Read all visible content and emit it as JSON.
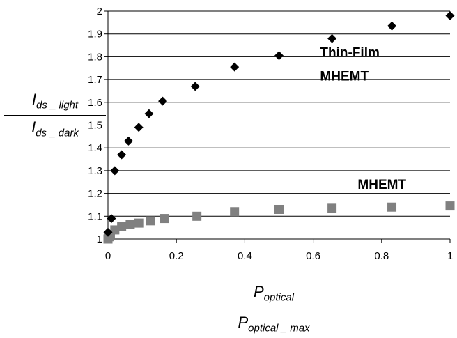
{
  "chart_data": {
    "type": "scatter",
    "title": "",
    "xlim": [
      0,
      1
    ],
    "ylim": [
      1,
      2
    ],
    "x_ticks": [
      0,
      0.2,
      0.4,
      0.6,
      0.8,
      1
    ],
    "y_ticks": [
      1,
      1.1,
      1.2,
      1.3,
      1.4,
      1.5,
      1.6,
      1.7,
      1.8,
      1.9,
      2
    ],
    "x_tick_labels": [
      "0",
      "0.2",
      "0.4",
      "0.6",
      "0.8",
      "1"
    ],
    "y_tick_labels": [
      "1",
      "1.1",
      "1.2",
      "1.3",
      "1.4",
      "1.5",
      "1.6",
      "1.7",
      "1.8",
      "1.9",
      "2"
    ],
    "grid": "horizontal",
    "xlabel": {
      "num_main": "P",
      "num_sub": "optical",
      "den_main": "P",
      "den_sub": "optical _ max"
    },
    "ylabel": {
      "num_main": "I",
      "num_sub": "ds _ light",
      "den_main": "I",
      "den_sub": "ds _ dark"
    },
    "annotations": [
      {
        "text_lines": [
          "Thin-Film",
          "MHEMT"
        ],
        "x": 0.62,
        "y": 1.8
      },
      {
        "text_lines": [
          "MHEMT"
        ],
        "x": 0.73,
        "y": 1.22
      }
    ],
    "series": [
      {
        "marker": "diamond",
        "color": "#000000",
        "points": [
          [
            0.0,
            1.03
          ],
          [
            0.01,
            1.09
          ],
          [
            0.02,
            1.3
          ],
          [
            0.04,
            1.37
          ],
          [
            0.06,
            1.43
          ],
          [
            0.09,
            1.49
          ],
          [
            0.12,
            1.55
          ],
          [
            0.16,
            1.605
          ],
          [
            0.255,
            1.67
          ],
          [
            0.37,
            1.755
          ],
          [
            0.5,
            1.805
          ],
          [
            0.655,
            1.88
          ],
          [
            0.83,
            1.935
          ],
          [
            1.0,
            1.98
          ]
        ]
      },
      {
        "marker": "square",
        "color": "#808080",
        "points": [
          [
            0.0,
            1.0
          ],
          [
            0.003,
            1.01
          ],
          [
            0.007,
            1.02
          ],
          [
            0.02,
            1.04
          ],
          [
            0.04,
            1.055
          ],
          [
            0.065,
            1.065
          ],
          [
            0.09,
            1.07
          ],
          [
            0.125,
            1.08
          ],
          [
            0.165,
            1.09
          ],
          [
            0.26,
            1.1
          ],
          [
            0.37,
            1.12
          ],
          [
            0.5,
            1.13
          ],
          [
            0.655,
            1.135
          ],
          [
            0.83,
            1.14
          ],
          [
            1.0,
            1.145
          ]
        ]
      }
    ]
  }
}
